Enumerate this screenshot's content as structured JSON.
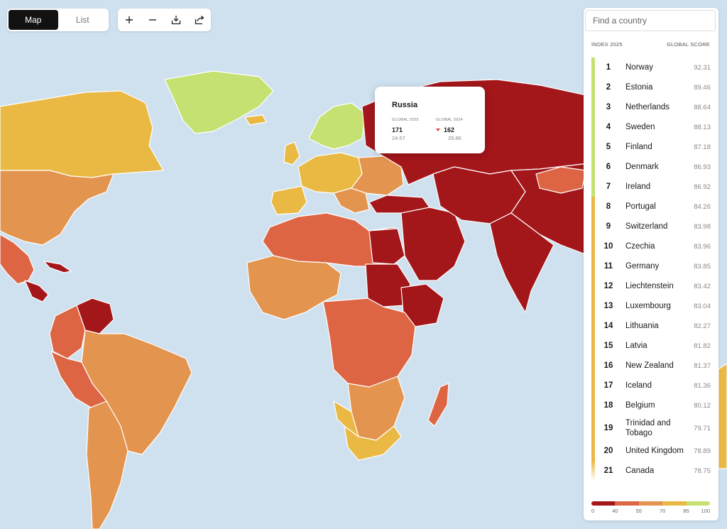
{
  "view_toggle": {
    "map_label": "Map",
    "list_label": "List",
    "active": "Map"
  },
  "toolbar": {
    "zoom_in_icon": "plus-icon",
    "zoom_out_icon": "minus-icon",
    "download_icon": "download-icon",
    "share_icon": "share-icon"
  },
  "tooltip": {
    "country": "Russia",
    "col1_label": "GLOBAL 2025",
    "col1_rank": "171",
    "col1_score": "24.57",
    "col2_label": "GLOBAL 2024",
    "col2_rank": "162",
    "col2_score": "29.86",
    "trend": "down"
  },
  "panel": {
    "search_placeholder": "Find a country",
    "header_left": "INDEX 2025",
    "header_right": "GLOBAL SCORE",
    "rows": [
      {
        "rank": "1",
        "name": "Norway",
        "score": "92.31"
      },
      {
        "rank": "2",
        "name": "Estonia",
        "score": "89.46"
      },
      {
        "rank": "3",
        "name": "Netherlands",
        "score": "88.64"
      },
      {
        "rank": "4",
        "name": "Sweden",
        "score": "88.13"
      },
      {
        "rank": "5",
        "name": "Finland",
        "score": "87.18"
      },
      {
        "rank": "6",
        "name": "Denmark",
        "score": "86.93"
      },
      {
        "rank": "7",
        "name": "Ireland",
        "score": "86.92"
      },
      {
        "rank": "8",
        "name": "Portugal",
        "score": "84.26"
      },
      {
        "rank": "9",
        "name": "Switzerland",
        "score": "83.98"
      },
      {
        "rank": "10",
        "name": "Czechia",
        "score": "83.96"
      },
      {
        "rank": "11",
        "name": "Germany",
        "score": "83.85"
      },
      {
        "rank": "12",
        "name": "Liechtenstein",
        "score": "83.42"
      },
      {
        "rank": "13",
        "name": "Luxembourg",
        "score": "83.04"
      },
      {
        "rank": "14",
        "name": "Lithuania",
        "score": "82.27"
      },
      {
        "rank": "15",
        "name": "Latvia",
        "score": "81.82"
      },
      {
        "rank": "16",
        "name": "New Zealand",
        "score": "81.37"
      },
      {
        "rank": "17",
        "name": "Iceland",
        "score": "81.36"
      },
      {
        "rank": "18",
        "name": "Belgium",
        "score": "80.12"
      },
      {
        "rank": "19",
        "name": "Trinidad and Tobago",
        "score": "79.71"
      },
      {
        "rank": "20",
        "name": "United Kingdom",
        "score": "78.89"
      },
      {
        "rank": "21",
        "name": "Canada",
        "score": "78.75"
      }
    ]
  },
  "legend": {
    "ticks": [
      "0",
      "40",
      "55",
      "70",
      "85",
      "100"
    ],
    "colors": [
      "#a3161a",
      "#dd6544",
      "#e3944f",
      "#e9b944",
      "#c5e171"
    ]
  },
  "colors": {
    "ocean": "#cfe1ef",
    "very_serious": "#a3161a",
    "difficult": "#dd6544",
    "problematic": "#e3944f",
    "satisfactory": "#e9b944",
    "good": "#c5e171"
  }
}
